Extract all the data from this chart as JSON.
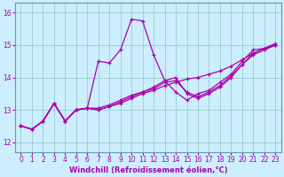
{
  "xlabel": "Windchill (Refroidissement éolien,°C)",
  "bg_color": "#cceeff",
  "line_color": "#aa00aa",
  "grid_color": "#99cccc",
  "spine_color": "#6699aa",
  "x_ticks": [
    0,
    1,
    2,
    3,
    4,
    5,
    6,
    7,
    8,
    9,
    10,
    11,
    12,
    13,
    14,
    15,
    16,
    17,
    18,
    19,
    20,
    21,
    22,
    23
  ],
  "y_ticks": [
    12,
    13,
    14,
    15,
    16
  ],
  "xlim": [
    -0.5,
    23.5
  ],
  "ylim": [
    11.7,
    16.3
  ],
  "series": [
    [
      12.5,
      12.4,
      12.65,
      13.2,
      12.65,
      13.0,
      13.05,
      14.5,
      14.45,
      14.85,
      15.8,
      15.75,
      14.7,
      13.9,
      13.55,
      13.3,
      13.5,
      13.6,
      13.85,
      14.1,
      14.5,
      14.85,
      14.9,
      15.0
    ],
    [
      12.5,
      12.4,
      12.65,
      13.2,
      12.65,
      13.0,
      13.05,
      13.05,
      13.15,
      13.3,
      13.45,
      13.55,
      13.65,
      13.85,
      13.9,
      13.55,
      13.4,
      13.55,
      13.75,
      14.05,
      14.4,
      14.75,
      14.9,
      15.0
    ],
    [
      12.5,
      12.4,
      12.65,
      13.2,
      12.65,
      13.0,
      13.05,
      13.0,
      13.1,
      13.2,
      13.35,
      13.5,
      13.6,
      13.75,
      13.85,
      13.95,
      14.0,
      14.1,
      14.2,
      14.35,
      14.55,
      14.75,
      14.9,
      15.05
    ],
    [
      12.5,
      12.4,
      12.65,
      13.2,
      12.65,
      13.0,
      13.05,
      13.0,
      13.1,
      13.25,
      13.4,
      13.55,
      13.7,
      13.9,
      14.0,
      13.5,
      13.35,
      13.5,
      13.7,
      14.0,
      14.4,
      14.7,
      14.85,
      15.0
    ]
  ],
  "xlabel_fontsize": 6,
  "tick_fontsize": 5.5,
  "linewidth": 0.9,
  "markersize": 3.5,
  "markeredgewidth": 0.9
}
